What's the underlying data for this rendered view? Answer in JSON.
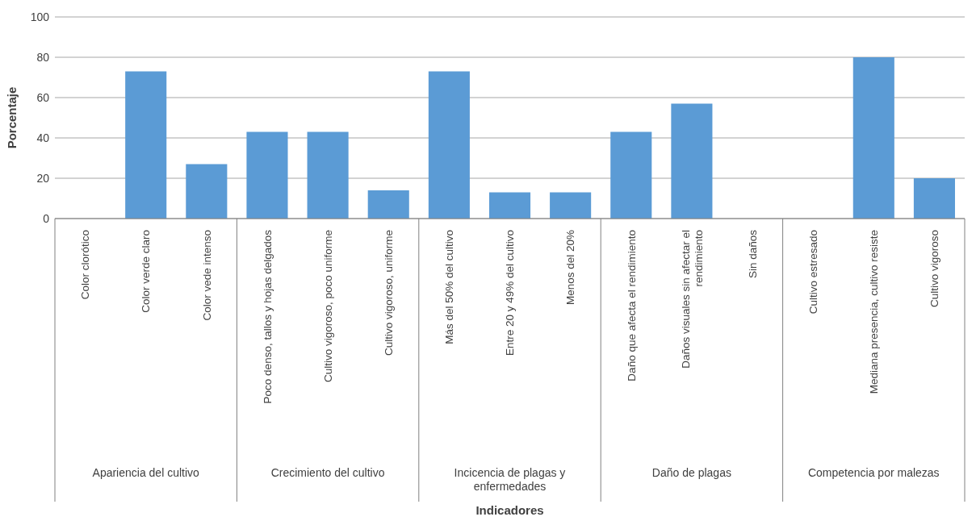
{
  "chart_data": {
    "type": "bar",
    "ylabel": "Porcentaje",
    "categories": [
      "Color clorótico",
      "Color verde claro",
      "Color vede intenso",
      "Poco denso, tallos y hojas delgados",
      "Cultivo vigoroso, poco uniforme",
      "Cultivo vigoroso, uniforme",
      "Más del 50% del cultivo",
      "Entre 20 y 49% del cultivo",
      "Menos del 20%",
      "Daño que afecta el rendimiento",
      "Daños visuales sin afectar el rendimiento",
      "Sin daños",
      "Cultivo estresado",
      "Mediana presencia, cultivo resiste",
      "Cultivo vigoroso"
    ],
    "values": [
      0,
      73,
      27,
      43,
      43,
      14,
      73,
      13,
      13,
      43,
      57,
      0,
      0,
      80,
      20
    ],
    "color": "#5b9bd5",
    "ylim": [
      0,
      100
    ],
    "yticks": [
      0,
      20,
      40,
      60,
      80,
      100
    ],
    "grid": "y",
    "annotations": [
      "Apariencia del cultivo",
      "Crecimiento del cultivo",
      "Incicencia de plagas y enfermedades",
      "Daño de plagas",
      "Competencia por malezas",
      "Indicadores"
    ]
  }
}
